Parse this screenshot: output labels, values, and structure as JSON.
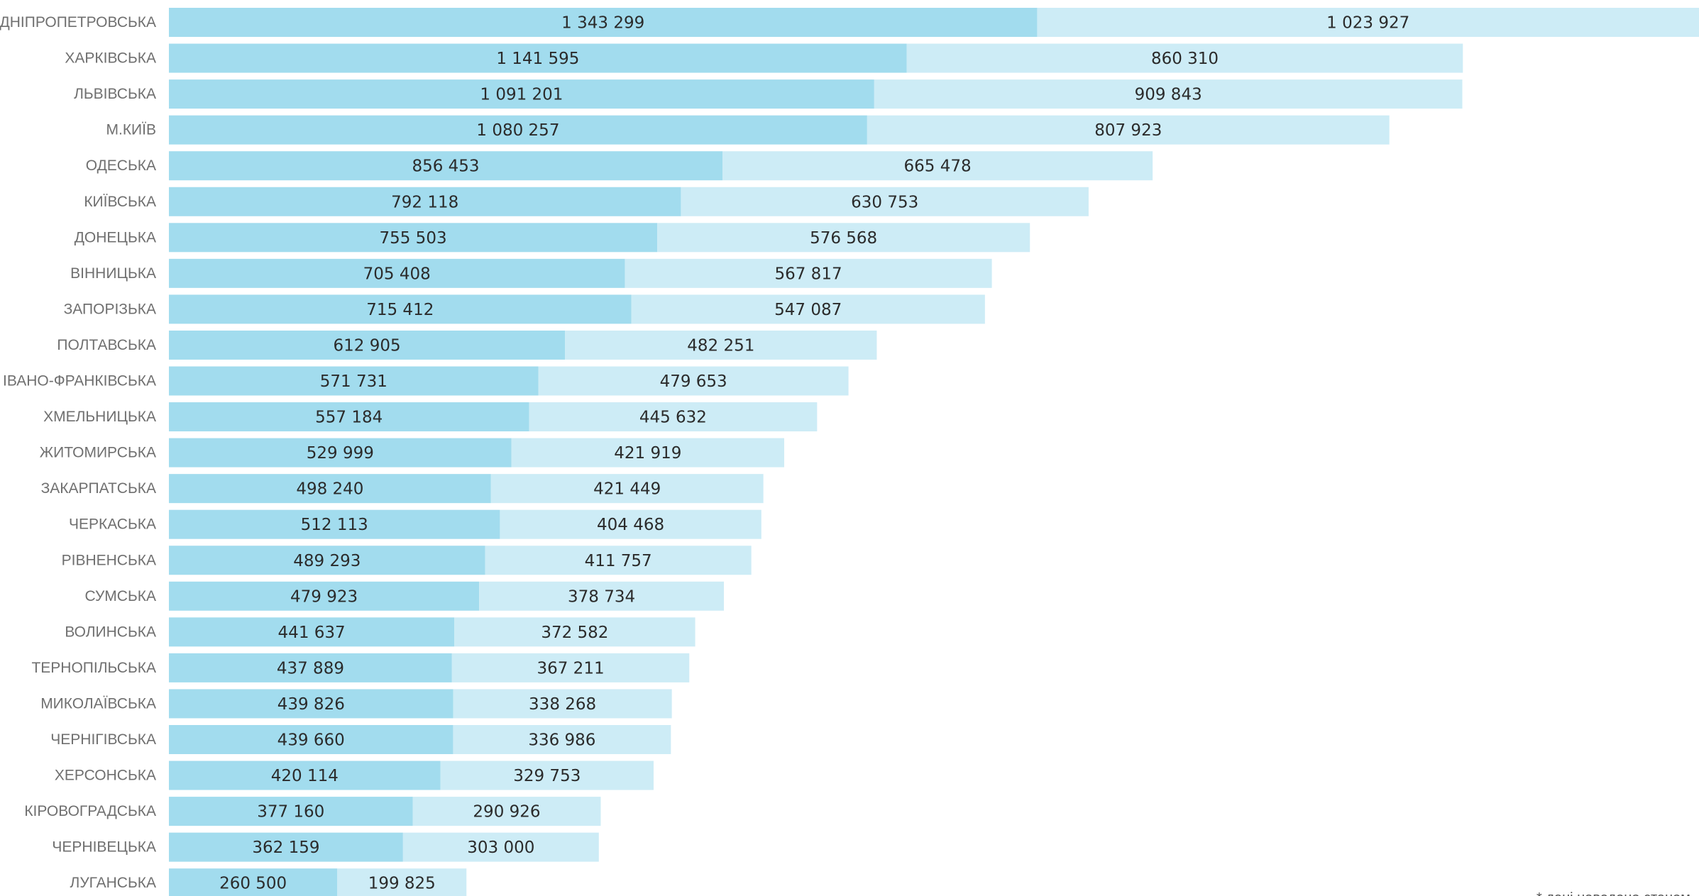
{
  "chart_data": {
    "type": "bar",
    "orientation": "horizontal",
    "stacked": true,
    "categories": [
      "ДНІПРОПЕТРОВСЬКА",
      "ХАРКІВСЬКА",
      "ЛЬВІВСЬКА",
      "М.КИЇВ",
      "ОДЕСЬКА",
      "КИЇВСЬКА",
      "ДОНЕЦЬКА",
      "ВІННИЦЬКА",
      "ЗАПОРІЗЬКА",
      "ПОЛТАВСЬКА",
      "ІВАНО-ФРАНКІВСЬКА",
      "ХМЕЛЬНИЦЬКА",
      "ЖИТОМИРСЬКА",
      "ЗАКАРПАТСЬКА",
      "ЧЕРКАСЬКА",
      "РІВНЕНСЬКА",
      "СУМСЬКА",
      "ВОЛИНСЬКА",
      "ТЕРНОПІЛЬСЬКА",
      "МИКОЛАЇВСЬКА",
      "ЧЕРНІГІВСЬКА",
      "ХЕРСОНСЬКА",
      "КІРОВОГРАДСЬКА",
      "ЧЕРНІВЕЦЬКА",
      "ЛУГАНСЬКА"
    ],
    "series": [
      {
        "color": "#a2dcee",
        "values": [
          1343299,
          1141595,
          1091201,
          1080257,
          856453,
          792118,
          755503,
          705408,
          715412,
          612905,
          571731,
          557184,
          529999,
          498240,
          512113,
          489293,
          479923,
          441637,
          437889,
          439826,
          439660,
          420114,
          377160,
          362159,
          260500
        ],
        "labels": [
          "1 343 299",
          "1 141 595",
          "1 091 201",
          "1 080 257",
          "856 453",
          "792 118",
          "755 503",
          "705 408",
          "715 412",
          "612 905",
          "571 731",
          "557 184",
          "529 999",
          "498 240",
          "512 113",
          "489 293",
          "479 923",
          "441 637",
          "437 889",
          "439 826",
          "439 660",
          "420 114",
          "377 160",
          "362 159",
          "260 500"
        ]
      },
      {
        "color": "#cdecf6",
        "values": [
          1023927,
          860310,
          909843,
          807923,
          665478,
          630753,
          576568,
          567817,
          547087,
          482251,
          479653,
          445632,
          421919,
          421449,
          404468,
          411757,
          378734,
          372582,
          367211,
          338268,
          336986,
          329753,
          290926,
          303000,
          199825
        ],
        "labels": [
          "1 023 927",
          "860 310",
          "909 843",
          "807 923",
          "665 478",
          "630 753",
          "576 568",
          "567 817",
          "547 087",
          "482 251",
          "479 653",
          "445 632",
          "421 919",
          "421 449",
          "404 468",
          "411 757",
          "378 734",
          "372 582",
          "367 211",
          "338 268",
          "336 986",
          "329 753",
          "290 926",
          "303 000",
          "199 825"
        ]
      }
    ],
    "xlim": [
      0,
      2367226
    ],
    "grid": false,
    "footnote": "* дані наведено станом"
  }
}
